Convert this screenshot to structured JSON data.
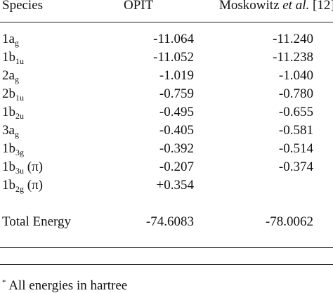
{
  "table": {
    "headers": {
      "species": "Species",
      "opit": "OPIT",
      "moskowitz_prefix": "Moskowitz ",
      "moskowitz_italic": "et al.",
      "moskowitz_ref": " [12]"
    },
    "rows": [
      {
        "base": "1a",
        "sub": "g",
        "suffix": "",
        "opit": "-11.064",
        "mosk": "-11.240"
      },
      {
        "base": "1b",
        "sub": "1u",
        "suffix": "",
        "opit": "-11.052",
        "mosk": "-11.238"
      },
      {
        "base": "2a",
        "sub": "g",
        "suffix": "",
        "opit": "-1.019",
        "mosk": "-1.040"
      },
      {
        "base": "2b",
        "sub": "1u",
        "suffix": "",
        "opit": "-0.759",
        "mosk": "-0.780"
      },
      {
        "base": "1b",
        "sub": "2u",
        "suffix": "",
        "opit": "-0.495",
        "mosk": "-0.655"
      },
      {
        "base": "3a",
        "sub": "g",
        "suffix": "",
        "opit": "-0.405",
        "mosk": "-0.581"
      },
      {
        "base": "1b",
        "sub": "3g",
        "suffix": "",
        "opit": "-0.392",
        "mosk": "-0.514"
      },
      {
        "base": "1b",
        "sub": "3u",
        "suffix": " (π)",
        "opit": "-0.207",
        "mosk": "-0.374"
      },
      {
        "base": "1b",
        "sub": "2g",
        "suffix": " (π)",
        "opit": "+0.354",
        "mosk": ""
      }
    ],
    "total": {
      "label": "Total Energy",
      "opit": "-74.6083",
      "mosk": "-78.0062"
    }
  },
  "footnote": {
    "marker": "*",
    "text": "All energies in hartree"
  }
}
